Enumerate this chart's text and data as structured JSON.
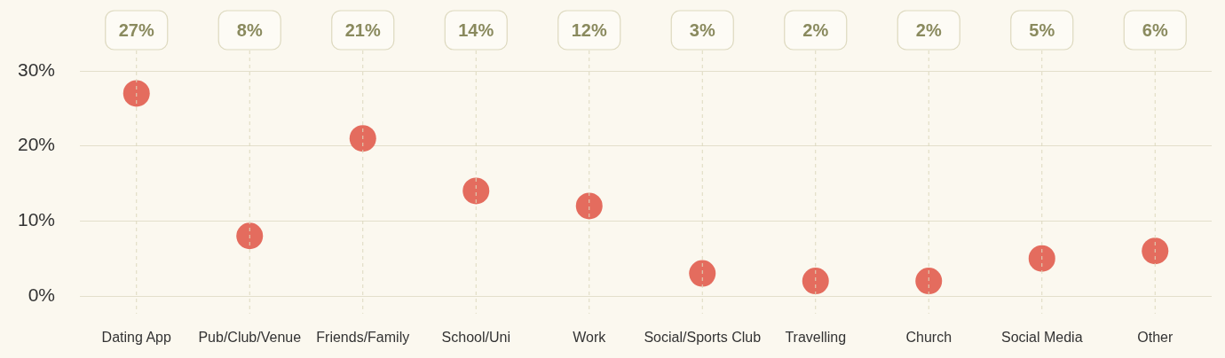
{
  "chart_data": {
    "type": "scatter",
    "categories": [
      "Dating App",
      "Pub/Club/Venue",
      "Friends/Family",
      "School/Uni",
      "Work",
      "Social/Sports Club",
      "Travelling",
      "Church",
      "Social Media",
      "Other"
    ],
    "values": [
      27,
      8,
      21,
      14,
      12,
      3,
      2,
      2,
      5,
      6
    ],
    "value_labels": [
      "27%",
      "8%",
      "21%",
      "14%",
      "12%",
      "3%",
      "2%",
      "2%",
      "5%",
      "6%"
    ],
    "color": "#e46c5e",
    "ylim": [
      0,
      30
    ],
    "yticks": [
      {
        "value": 0,
        "label": "0%"
      },
      {
        "value": 10,
        "label": "10%"
      },
      {
        "value": 20,
        "label": "20%"
      },
      {
        "value": 30,
        "label": "30%"
      }
    ],
    "grid": true,
    "marker": "circle",
    "legend": false
  }
}
